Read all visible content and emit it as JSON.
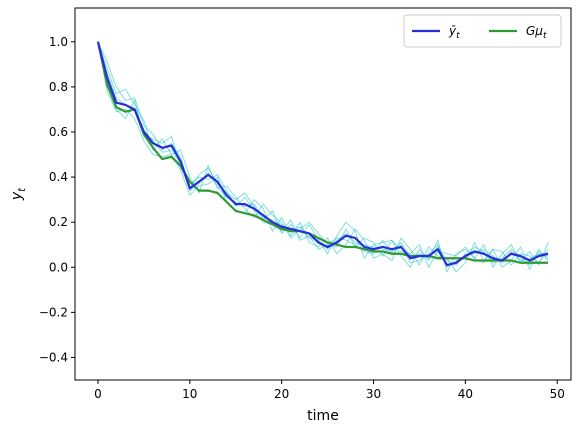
{
  "chart_data": {
    "type": "line",
    "xlabel": "time",
    "ylabel": "y_t",
    "xlim": [
      -2.5,
      51.5
    ],
    "ylim": [
      -0.5,
      1.15
    ],
    "xticks": [
      0,
      10,
      20,
      30,
      40,
      50
    ],
    "xtick_labels": [
      "0",
      "10",
      "20",
      "30",
      "40",
      "50"
    ],
    "yticks": [
      -0.4,
      -0.2,
      0.0,
      0.2,
      0.4,
      0.6,
      0.8,
      1.0
    ],
    "ytick_labels": [
      "−0.4",
      "−0.2",
      "0.0",
      "0.2",
      "0.4",
      "0.6",
      "0.8",
      "1.0"
    ],
    "grid": false,
    "legend_position": "top-right",
    "series": [
      {
        "name": "ȳ_t",
        "color": "#2b2bdc",
        "x": [
          0,
          1,
          2,
          3,
          4,
          5,
          6,
          7,
          8,
          9,
          10,
          11,
          12,
          13,
          14,
          15,
          16,
          17,
          18,
          19,
          20,
          21,
          22,
          23,
          24,
          25,
          26,
          27,
          28,
          29,
          30,
          31,
          32,
          33,
          34,
          35,
          36,
          37,
          38,
          39,
          40,
          41,
          42,
          43,
          44,
          45,
          46,
          47,
          48,
          49
        ],
        "values": [
          1.0,
          0.84,
          0.73,
          0.72,
          0.7,
          0.6,
          0.55,
          0.53,
          0.54,
          0.47,
          0.35,
          0.38,
          0.41,
          0.38,
          0.32,
          0.28,
          0.28,
          0.26,
          0.23,
          0.2,
          0.18,
          0.17,
          0.16,
          0.15,
          0.11,
          0.09,
          0.11,
          0.14,
          0.13,
          0.09,
          0.08,
          0.09,
          0.08,
          0.09,
          0.04,
          0.05,
          0.05,
          0.08,
          0.01,
          0.02,
          0.05,
          0.07,
          0.06,
          0.04,
          0.03,
          0.06,
          0.05,
          0.03,
          0.05,
          0.06
        ]
      },
      {
        "name": "Gμ_t",
        "color": "#2e9a33",
        "x": [
          0,
          1,
          2,
          3,
          4,
          5,
          6,
          7,
          8,
          9,
          10,
          11,
          12,
          13,
          14,
          15,
          16,
          17,
          18,
          19,
          20,
          21,
          22,
          23,
          24,
          25,
          26,
          27,
          28,
          29,
          30,
          31,
          32,
          33,
          34,
          35,
          36,
          37,
          38,
          39,
          40,
          41,
          42,
          43,
          44,
          45,
          46,
          47,
          48,
          49
        ],
        "values": [
          1.0,
          0.81,
          0.71,
          0.69,
          0.7,
          0.59,
          0.53,
          0.48,
          0.49,
          0.45,
          0.38,
          0.34,
          0.34,
          0.33,
          0.29,
          0.25,
          0.24,
          0.23,
          0.21,
          0.19,
          0.17,
          0.16,
          0.16,
          0.15,
          0.13,
          0.11,
          0.1,
          0.09,
          0.09,
          0.08,
          0.07,
          0.07,
          0.06,
          0.06,
          0.05,
          0.05,
          0.05,
          0.04,
          0.04,
          0.04,
          0.04,
          0.03,
          0.03,
          0.03,
          0.03,
          0.03,
          0.02,
          0.02,
          0.02,
          0.02
        ]
      }
    ],
    "simulated_paths": {
      "color": "#00bfbf",
      "count": 20,
      "description_values_are_noisy_samples_around_mean": false,
      "paths": [
        [
          1.0,
          0.91,
          0.8,
          0.74,
          0.75,
          0.63,
          0.59,
          0.52,
          0.55,
          0.49,
          0.35,
          0.41,
          0.44,
          0.37,
          0.33,
          0.3,
          0.33,
          0.27,
          0.21,
          0.25,
          0.15,
          0.19,
          0.13,
          0.19,
          0.12,
          0.06,
          0.14,
          0.2,
          0.16,
          0.04,
          0.1,
          0.11,
          0.12,
          0.05,
          0.0,
          0.08,
          0.03,
          0.12,
          -0.02,
          0.06,
          0.08,
          0.04,
          0.1,
          0.0,
          0.06,
          0.1,
          0.02,
          0.07,
          0.01,
          0.11
        ],
        [
          1.0,
          0.78,
          0.69,
          0.7,
          0.66,
          0.56,
          0.5,
          0.49,
          0.5,
          0.43,
          0.32,
          0.36,
          0.37,
          0.4,
          0.29,
          0.25,
          0.24,
          0.3,
          0.26,
          0.16,
          0.22,
          0.14,
          0.2,
          0.11,
          0.09,
          0.13,
          0.06,
          0.1,
          0.17,
          0.12,
          0.04,
          0.06,
          0.03,
          0.13,
          0.08,
          0.01,
          0.09,
          0.05,
          0.04,
          -0.02,
          0.02,
          0.11,
          0.03,
          0.08,
          0.0,
          0.03,
          0.09,
          -0.01,
          0.08,
          0.03
        ],
        [
          1.0,
          0.88,
          0.77,
          0.79,
          0.72,
          0.65,
          0.52,
          0.57,
          0.5,
          0.52,
          0.4,
          0.33,
          0.45,
          0.35,
          0.36,
          0.31,
          0.26,
          0.22,
          0.28,
          0.23,
          0.2,
          0.13,
          0.17,
          0.2,
          0.15,
          0.1,
          0.09,
          0.17,
          0.09,
          0.13,
          0.11,
          0.05,
          0.12,
          0.07,
          0.06,
          0.1,
          0.0,
          0.07,
          0.06,
          0.05,
          0.09,
          0.04,
          0.02,
          0.08,
          0.07,
          0.01,
          0.06,
          0.05,
          0.02,
          0.08
        ],
        [
          1.0,
          0.8,
          0.7,
          0.66,
          0.74,
          0.58,
          0.57,
          0.55,
          0.58,
          0.44,
          0.37,
          0.4,
          0.39,
          0.41,
          0.34,
          0.27,
          0.31,
          0.25,
          0.2,
          0.19,
          0.16,
          0.21,
          0.12,
          0.14,
          0.08,
          0.1,
          0.13,
          0.12,
          0.1,
          0.07,
          0.06,
          0.12,
          0.06,
          0.1,
          0.02,
          0.03,
          0.06,
          0.1,
          0.0,
          0.03,
          0.04,
          0.09,
          0.07,
          0.02,
          0.04,
          0.08,
          0.04,
          0.01,
          0.07,
          0.04
        ],
        [
          1.0,
          0.86,
          0.75,
          0.72,
          0.69,
          0.61,
          0.56,
          0.51,
          0.52,
          0.46,
          0.34,
          0.37,
          0.42,
          0.36,
          0.31,
          0.29,
          0.27,
          0.28,
          0.22,
          0.21,
          0.19,
          0.16,
          0.18,
          0.13,
          0.12,
          0.08,
          0.12,
          0.15,
          0.11,
          0.1,
          0.09,
          0.08,
          0.07,
          0.11,
          0.05,
          0.06,
          0.04,
          0.09,
          0.03,
          0.01,
          0.06,
          0.06,
          0.08,
          0.05,
          0.02,
          0.07,
          0.03,
          0.04,
          0.06,
          0.05
        ]
      ]
    }
  }
}
